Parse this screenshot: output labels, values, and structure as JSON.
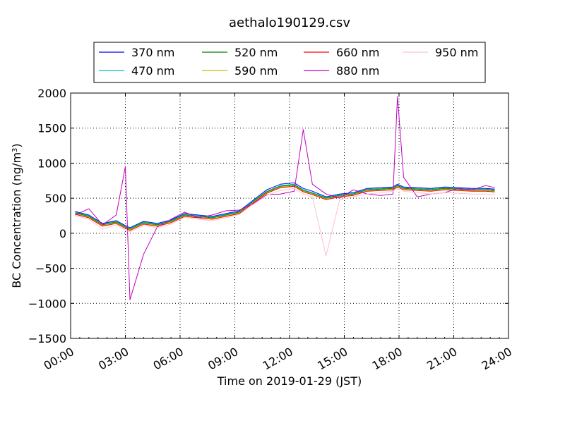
{
  "chart_data": {
    "type": "line",
    "title": "aethalo190129.csv",
    "xlabel": "Time on 2019-01-29 (JST)",
    "ylabel": "BC Concentration (ng/m³)",
    "ylabel_base": "BC Concentration (ng/m",
    "ylabel_sup": "3",
    "ylabel_tail": ")",
    "xlim": [
      "2019-01-29 00:00",
      "2019-01-30 00:00"
    ],
    "ylim": [
      -1500,
      2000
    ],
    "x_ticks": [
      "00:00",
      "03:00",
      "06:00",
      "09:00",
      "12:00",
      "15:00",
      "18:00",
      "21:00",
      "24:00"
    ],
    "y_ticks": [
      "2000",
      "1500",
      "1000",
      "500",
      "0",
      "−500",
      "−1000",
      "−1500"
    ],
    "grid": true,
    "legend_position": "top-center",
    "x": [
      "00:15",
      "01:00",
      "01:45",
      "02:30",
      "03:00",
      "03:15",
      "04:00",
      "04:45",
      "05:30",
      "06:15",
      "07:00",
      "07:45",
      "08:30",
      "09:15",
      "10:00",
      "10:45",
      "11:30",
      "12:15",
      "12:45",
      "13:15",
      "14:00",
      "14:45",
      "15:30",
      "16:15",
      "17:00",
      "17:40",
      "17:55",
      "18:15",
      "19:00",
      "19:45",
      "20:30",
      "21:15",
      "22:00",
      "22:45",
      "23:15"
    ],
    "series": [
      {
        "name": "370 nm",
        "color": "#0000ff",
        "values": [
          310,
          260,
          140,
          180,
          110,
          80,
          170,
          140,
          190,
          280,
          260,
          240,
          280,
          320,
          470,
          620,
          700,
          720,
          640,
          600,
          520,
          560,
          580,
          640,
          650,
          660,
          700,
          660,
          650,
          640,
          660,
          650,
          640,
          640,
          630
        ]
      },
      {
        "name": "470 nm",
        "color": "#00bfbf",
        "values": [
          300,
          250,
          130,
          170,
          100,
          70,
          160,
          130,
          180,
          270,
          250,
          230,
          270,
          310,
          460,
          600,
          680,
          700,
          620,
          580,
          510,
          550,
          570,
          630,
          640,
          650,
          690,
          650,
          640,
          630,
          650,
          640,
          630,
          630,
          620
        ]
      },
      {
        "name": "520 nm",
        "color": "#008000",
        "values": [
          290,
          240,
          120,
          160,
          90,
          60,
          150,
          120,
          170,
          260,
          240,
          220,
          260,
          300,
          450,
          590,
          670,
          690,
          610,
          570,
          500,
          540,
          560,
          620,
          630,
          640,
          680,
          640,
          630,
          620,
          640,
          630,
          620,
          620,
          610
        ]
      },
      {
        "name": "590 nm",
        "color": "#bfbf00",
        "values": [
          280,
          230,
          110,
          150,
          80,
          50,
          140,
          110,
          160,
          250,
          230,
          210,
          250,
          290,
          440,
          580,
          660,
          680,
          600,
          560,
          490,
          530,
          550,
          610,
          620,
          630,
          670,
          630,
          620,
          610,
          630,
          620,
          610,
          610,
          600
        ]
      },
      {
        "name": "660 nm",
        "color": "#ff0000",
        "values": [
          270,
          220,
          100,
          140,
          70,
          40,
          130,
          100,
          150,
          240,
          220,
          200,
          240,
          280,
          430,
          570,
          650,
          670,
          590,
          550,
          480,
          520,
          540,
          600,
          610,
          620,
          660,
          620,
          610,
          600,
          620,
          610,
          600,
          600,
          590
        ]
      },
      {
        "name": "880 nm",
        "color": "#bf00bf",
        "values": [
          260,
          350,
          120,
          260,
          950,
          -950,
          -300,
          90,
          200,
          300,
          220,
          260,
          320,
          330,
          420,
          550,
          560,
          600,
          1480,
          700,
          560,
          500,
          620,
          560,
          540,
          560,
          1950,
          800,
          520,
          560,
          580,
          640,
          620,
          680,
          650
        ]
      },
      {
        "name": "950 nm",
        "color": "#ffc0cb",
        "values": [
          250,
          200,
          60,
          120,
          40,
          20,
          110,
          80,
          130,
          230,
          200,
          180,
          220,
          270,
          410,
          540,
          610,
          640,
          560,
          520,
          -320,
          480,
          520,
          560,
          580,
          600,
          640,
          600,
          580,
          560,
          580,
          570,
          560,
          560,
          550
        ]
      }
    ]
  }
}
